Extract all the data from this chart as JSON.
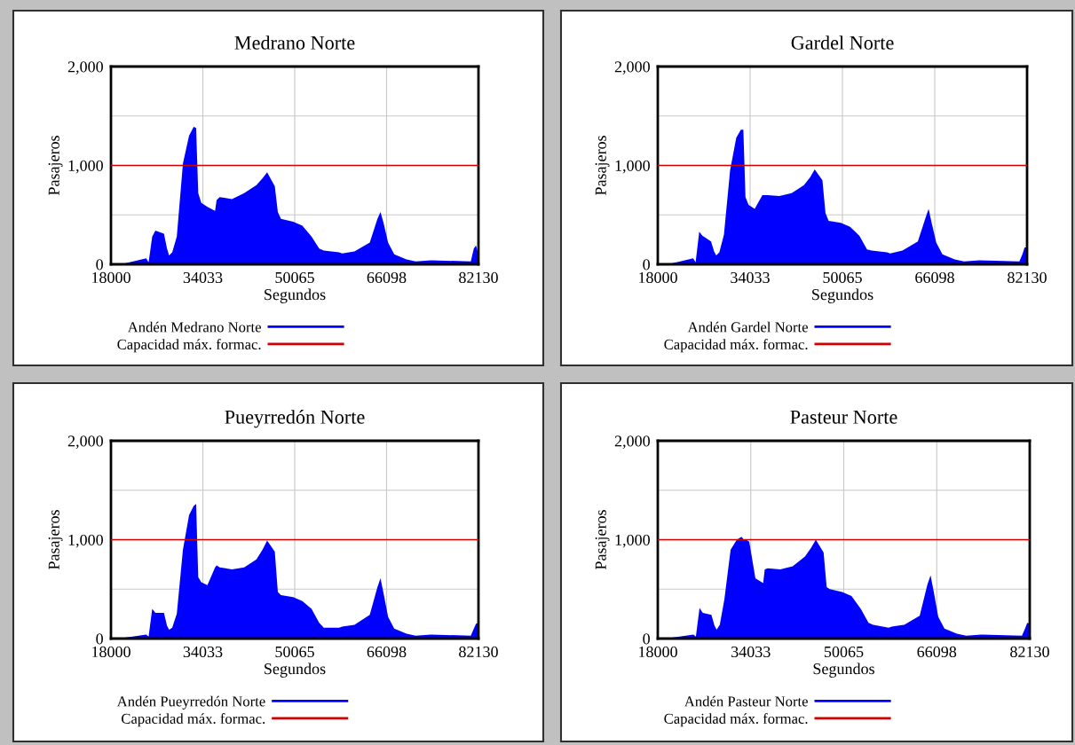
{
  "chart_data": [
    {
      "type": "area",
      "title": "Medrano Norte",
      "xlabel": "Segundos",
      "ylabel": "Pasajeros",
      "xlim": [
        18000,
        82130
      ],
      "xticks": [
        18000,
        34033,
        50065,
        66098,
        82130
      ],
      "ylim": [
        0,
        2000
      ],
      "yticks": [
        0,
        {
          "value": 500,
          "label": null
        },
        {
          "value": 1000,
          "label": "1,000"
        },
        {
          "value": 1500,
          "label": null
        },
        {
          "value": 2000,
          "label": "2,000"
        }
      ],
      "grid": true,
      "legend": "bottom",
      "x": [
        18000,
        20400,
        24150,
        24570,
        25200,
        25750,
        27250,
        27780,
        28150,
        28690,
        29490,
        30560,
        31630,
        32430,
        32860,
        33230,
        33770,
        34830,
        36170,
        36440,
        36970,
        39110,
        41250,
        43380,
        44450,
        45250,
        46590,
        47120,
        47660,
        49800,
        51400,
        53000,
        54340,
        55140,
        57810,
        58350,
        60490,
        63160,
        64500,
        65030,
        65560,
        66360,
        67430,
        69570,
        71170,
        73840,
        80790,
        81320,
        81700,
        82130
      ],
      "series": [
        {
          "name": "Andén Medrano Norte",
          "color": "#0000ff",
          "values": [
            0,
            10,
            60,
            20,
            280,
            340,
            310,
            160,
            90,
            120,
            280,
            1020,
            1300,
            1390,
            1380,
            720,
            620,
            580,
            540,
            650,
            680,
            660,
            720,
            800,
            870,
            930,
            790,
            530,
            460,
            430,
            390,
            280,
            160,
            140,
            120,
            110,
            130,
            220,
            460,
            530,
            420,
            220,
            100,
            50,
            30,
            40,
            30,
            160,
            190,
            100
          ]
        }
      ],
      "ref_lines": [
        {
          "axis": "y",
          "value": 1000,
          "label": "Capacidad máx. formac.",
          "color": "#d00000"
        }
      ]
    },
    {
      "type": "area",
      "title": "Gardel Norte",
      "xlabel": "Segundos",
      "ylabel": "Pasajeros",
      "xlim": [
        18000,
        82130
      ],
      "xticks": [
        18000,
        34033,
        50065,
        66098,
        82130
      ],
      "ylim": [
        0,
        2000
      ],
      "yticks": [
        0,
        {
          "value": 500,
          "label": null
        },
        {
          "value": 1000,
          "label": "1,000"
        },
        {
          "value": 1500,
          "label": null
        },
        {
          "value": 2000,
          "label": "2,000"
        }
      ],
      "grid": true,
      "legend": "bottom",
      "x": [
        18000,
        20400,
        24150,
        24570,
        25200,
        25750,
        27250,
        27780,
        28150,
        28690,
        29490,
        30560,
        31630,
        32430,
        32860,
        33230,
        33770,
        34830,
        36170,
        36440,
        36970,
        39110,
        41250,
        43380,
        44450,
        45250,
        46590,
        47120,
        47660,
        49800,
        51400,
        53000,
        54340,
        55140,
        57810,
        58350,
        60490,
        63160,
        64500,
        65030,
        65560,
        66360,
        67430,
        69570,
        71170,
        73840,
        80790,
        81320,
        81700,
        82130
      ],
      "series": [
        {
          "name": "Andén Gardel Norte",
          "color": "#0000ff",
          "values": [
            0,
            10,
            60,
            20,
            330,
            290,
            230,
            130,
            90,
            120,
            300,
            950,
            1280,
            1360,
            1360,
            680,
            600,
            560,
            700,
            700,
            700,
            690,
            720,
            800,
            880,
            960,
            850,
            520,
            440,
            420,
            380,
            290,
            150,
            140,
            120,
            110,
            140,
            230,
            470,
            560,
            420,
            220,
            100,
            50,
            30,
            40,
            30,
            100,
            170,
            170
          ]
        }
      ],
      "ref_lines": [
        {
          "axis": "y",
          "value": 1000,
          "label": "Capacidad máx. formac.",
          "color": "#d00000"
        }
      ]
    },
    {
      "type": "area",
      "title": "Pueyrredón Norte",
      "xlabel": "Segundos",
      "ylabel": "Pasajeros",
      "xlim": [
        18000,
        82130
      ],
      "xticks": [
        18000,
        34033,
        50065,
        66098,
        82130
      ],
      "ylim": [
        0,
        2000
      ],
      "yticks": [
        0,
        {
          "value": 500,
          "label": null
        },
        {
          "value": 1000,
          "label": "1,000"
        },
        {
          "value": 1500,
          "label": null
        },
        {
          "value": 2000,
          "label": "2,000"
        }
      ],
      "grid": true,
      "legend": "bottom",
      "x": [
        18000,
        20400,
        24150,
        24570,
        25200,
        25750,
        27250,
        27780,
        28150,
        28690,
        29490,
        30560,
        31630,
        32430,
        32860,
        33230,
        33770,
        34830,
        36170,
        36440,
        36970,
        39110,
        41250,
        43380,
        44450,
        45250,
        46590,
        47120,
        47660,
        49800,
        51400,
        53000,
        54340,
        55140,
        57810,
        58350,
        60490,
        63160,
        64500,
        65030,
        65560,
        66360,
        67430,
        69570,
        71170,
        73840,
        80790,
        81320,
        81700,
        82130
      ],
      "series": [
        {
          "name": "Andén Pueyrredón Norte",
          "color": "#0000ff",
          "values": [
            0,
            10,
            40,
            20,
            300,
            260,
            260,
            130,
            90,
            110,
            250,
            900,
            1250,
            1340,
            1360,
            620,
            570,
            540,
            720,
            740,
            720,
            700,
            720,
            800,
            900,
            990,
            880,
            470,
            440,
            420,
            380,
            300,
            160,
            110,
            110,
            120,
            140,
            240,
            520,
            610,
            460,
            220,
            100,
            50,
            30,
            40,
            30,
            100,
            150,
            160
          ]
        }
      ],
      "ref_lines": [
        {
          "axis": "y",
          "value": 1000,
          "label": "Capacidad máx. formac.",
          "color": "#d00000"
        }
      ]
    },
    {
      "type": "area",
      "title": "Pasteur Norte",
      "xlabel": "Segundos",
      "ylabel": "Pasajeros",
      "xlim": [
        18000,
        82130
      ],
      "xticks": [
        18000,
        34033,
        50065,
        66098,
        82130
      ],
      "ylim": [
        0,
        2000
      ],
      "yticks": [
        0,
        {
          "value": 500,
          "label": null
        },
        {
          "value": 1000,
          "label": "1,000"
        },
        {
          "value": 1500,
          "label": null
        },
        {
          "value": 2000,
          "label": "2,000"
        }
      ],
      "grid": true,
      "legend": "bottom",
      "x": [
        18000,
        20400,
        24150,
        24570,
        25200,
        25750,
        27250,
        27780,
        28150,
        28690,
        29490,
        30560,
        31630,
        32430,
        32860,
        33230,
        33770,
        34830,
        36170,
        36440,
        36970,
        39110,
        41250,
        43380,
        44450,
        45250,
        46590,
        47120,
        47660,
        49800,
        51400,
        53000,
        54340,
        55140,
        57810,
        58350,
        60490,
        63160,
        64500,
        65030,
        65560,
        66360,
        67430,
        69570,
        71170,
        73840,
        80790,
        81320,
        81700,
        82130
      ],
      "series": [
        {
          "name": "Andén Pasteur Norte",
          "color": "#0000ff",
          "values": [
            0,
            10,
            40,
            20,
            310,
            260,
            240,
            130,
            90,
            140,
            400,
            900,
            1000,
            1030,
            1000,
            1000,
            980,
            610,
            560,
            700,
            710,
            700,
            730,
            830,
            920,
            1000,
            870,
            520,
            500,
            470,
            430,
            300,
            160,
            140,
            110,
            120,
            140,
            230,
            550,
            640,
            480,
            220,
            100,
            50,
            30,
            40,
            30,
            100,
            160,
            150
          ]
        }
      ],
      "ref_lines": [
        {
          "axis": "y",
          "value": 1000,
          "label": "Capacidad máx. formac.",
          "color": "#d00000"
        }
      ]
    }
  ]
}
